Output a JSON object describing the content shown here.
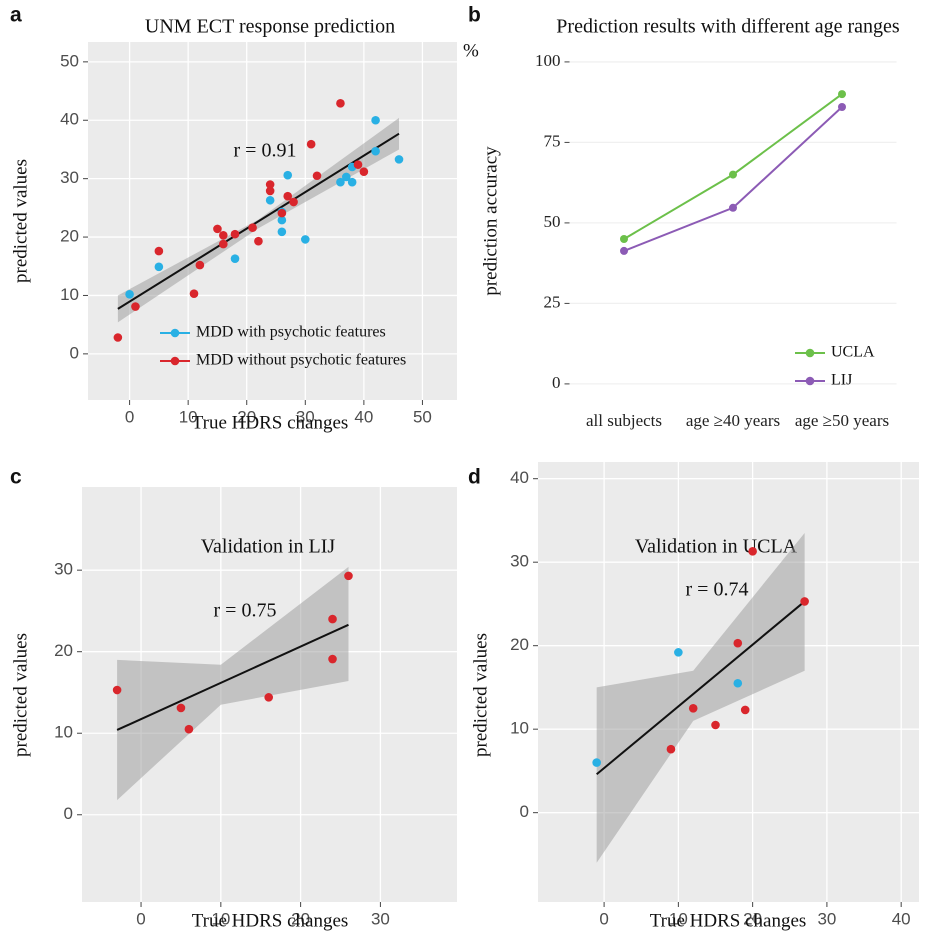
{
  "chart_data": [
    {
      "type": "scatter",
      "panel_label": "a",
      "title": "UNM ECT response prediction",
      "x_label": "True HDRS changes",
      "y_label": "predicted values",
      "annotation": "r = 0.91",
      "series": [
        {
          "name": "MDD with psychotic features",
          "color": "#29b0e4",
          "x": [
            0,
            5,
            18,
            24,
            26,
            26,
            26,
            27,
            30,
            36,
            37,
            38,
            38,
            42,
            42,
            46
          ],
          "values": [
            10.2,
            14.9,
            16.3,
            26.3,
            20.9,
            22.9,
            24.3,
            30.6,
            19.6,
            29.4,
            30.3,
            29.4,
            32,
            40,
            34.7,
            33.3
          ]
        },
        {
          "name": "MDD without psychotic features",
          "color": "#d9262c",
          "x": [
            -2,
            1,
            5,
            11,
            12,
            15,
            16,
            16,
            18,
            21,
            22,
            24,
            24,
            26,
            27,
            28,
            31,
            32,
            36,
            39,
            40
          ],
          "values": [
            2.8,
            8.1,
            17.6,
            10.3,
            15.2,
            21.4,
            20.3,
            18.8,
            20.5,
            21.6,
            19.3,
            29,
            27.9,
            24.1,
            27,
            26,
            35.9,
            30.5,
            42.9,
            32.4,
            31.2
          ]
        }
      ],
      "fit": {
        "x": [
          -2,
          46
        ],
        "y": [
          7.7,
          37.7
        ]
      },
      "band": {
        "x": [
          -2,
          22,
          46
        ],
        "lower": [
          5.4,
          21.5,
          35.0
        ],
        "upper": [
          10.0,
          23.0,
          40.4
        ]
      },
      "xlim": [
        -7.1,
        55.9
      ],
      "ylim": [
        -7.9,
        53.4
      ],
      "xticks": [
        0,
        10,
        20,
        30,
        40,
        50
      ],
      "yticks": [
        0,
        10,
        20,
        30,
        40,
        50
      ],
      "grid": true,
      "background": "#ebebeb",
      "grid_color": "#ffffff",
      "legend": "bottom-right"
    },
    {
      "type": "line",
      "panel_label": "b",
      "title": "Prediction results with different age ranges",
      "y_label": "prediction accuracy",
      "y_unit": "%",
      "categories": [
        "all subjects",
        "age ≥40 years",
        "age ≥50 years"
      ],
      "series": [
        {
          "name": "UCLA",
          "color": "#6cc04a",
          "values": [
            45,
            65,
            90
          ]
        },
        {
          "name": "LIJ",
          "color": "#8c5bb5",
          "values": [
            41.3,
            54.7,
            86
          ]
        }
      ],
      "ylim": [
        -5,
        103.7
      ],
      "yticks": [
        0,
        25,
        50,
        75,
        100
      ],
      "grid": true,
      "background": "#ffffff",
      "grid_color": "#f0f0f0",
      "legend": "bottom-right"
    },
    {
      "type": "scatter",
      "panel_label": "c",
      "title": "Validation in LIJ",
      "x_label": "True HDRS changes",
      "y_label": "predicted values",
      "annotation": "r = 0.75",
      "series": [
        {
          "color": "#d9262c",
          "x": [
            -3,
            5,
            6,
            16,
            24,
            24,
            26
          ],
          "values": [
            15.3,
            13.1,
            10.5,
            14.4,
            24,
            19.1,
            29.3
          ]
        }
      ],
      "fit": {
        "x": [
          -3,
          26
        ],
        "y": [
          10.4,
          23.3
        ]
      },
      "band": {
        "x": [
          -3,
          10,
          26
        ],
        "lower": [
          1.8,
          13.5,
          16.4
        ],
        "upper": [
          19.0,
          18.4,
          30.4
        ]
      },
      "xlim": [
        -7.4,
        39.6
      ],
      "ylim": [
        -10.7,
        40.2
      ],
      "xticks": [
        0,
        10,
        20,
        30
      ],
      "yticks": [
        0,
        10,
        20,
        30
      ],
      "grid": true,
      "background": "#ebebeb",
      "grid_color": "#ffffff"
    },
    {
      "type": "scatter",
      "panel_label": "d",
      "title": "Validation in UCLA",
      "x_label": "True HDRS changes",
      "y_label": "predicted values",
      "annotation": "r = 0.74",
      "series": [
        {
          "color": "#29b0e4",
          "x": [
            -1,
            10,
            18
          ],
          "values": [
            6,
            19.2,
            15.5
          ]
        },
        {
          "color": "#d9262c",
          "x": [
            9,
            12,
            15,
            18,
            19,
            20,
            27
          ],
          "values": [
            7.6,
            12.5,
            10.5,
            20.3,
            12.3,
            31.3,
            25.3
          ]
        }
      ],
      "fit": {
        "x": [
          -1,
          27
        ],
        "y": [
          4.6,
          25.3
        ]
      },
      "band": {
        "x": [
          -1,
          12,
          27
        ],
        "lower": [
          -6,
          11,
          17
        ],
        "upper": [
          15,
          17,
          33.5
        ]
      },
      "xlim": [
        -8.9,
        42.4
      ],
      "ylim": [
        -10.7,
        42
      ],
      "xticks": [
        0,
        10,
        20,
        30,
        40
      ],
      "yticks": [
        0,
        10,
        20,
        30,
        40
      ],
      "grid": true,
      "background": "#ebebeb",
      "grid_color": "#ffffff"
    }
  ]
}
